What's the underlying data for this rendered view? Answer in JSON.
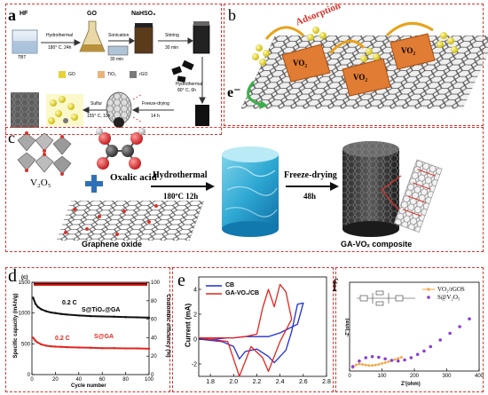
{
  "panel_a": {
    "label": "a",
    "row1": [
      {
        "name": "HF"
      },
      {
        "name": "GO"
      },
      {
        "name": "NaHSO₃"
      }
    ],
    "step_hydro": "Hydrothermal",
    "step_hydro_cond": "180° C, 24h",
    "step_sonic": "Sonication",
    "step_sonic_t": "30 min",
    "step_stir": "Stirring",
    "step_stir_t": "30 min",
    "tbt": "TBT",
    "legend_go": "GO",
    "legend_tio2": "TiO₂",
    "legend_rgo": "rGO",
    "step_hydro2": "Hydrothermal",
    "step_hydro2_cond": "80° C, 6h",
    "step_sulfur": "Sulfur",
    "step_sulfur_cond": "155° C, 10h",
    "step_freeze": "Freeze-drying",
    "step_freeze_t": "14 h"
  },
  "panel_b": {
    "label": "b",
    "adsorption": "Adsorption",
    "vo2": "VO₂",
    "electron": "e⁻"
  },
  "panel_c": {
    "label": "c",
    "v2o5": "V₂O₅",
    "oxalic": "Oxalic acid",
    "graphene_oxide": "Graphene oxide",
    "hydrothermal": "Hydrothermal",
    "hydro_cond": "180ºC 12h",
    "freeze": "Freeze-drying",
    "freeze_t": "48h",
    "composite": "GA-VOₓ composite"
  },
  "panel_d": {
    "label": "d",
    "sublabel": "(c)",
    "ylabel_left": "Specific capacity (mAh/g)",
    "ylabel_right": "Coulombic efficiency (%)",
    "xlabel": "Cycle number",
    "series1": "S@TiO₂@GA",
    "series2": "S@GA",
    "rate1": "0.2 C",
    "rate2": "0.2 C",
    "yticks_left": [
      "0",
      "500",
      "1000",
      "1500"
    ],
    "yticks_right": [
      "0",
      "20",
      "40",
      "60",
      "80",
      "100"
    ],
    "xticks": [
      "0",
      "20",
      "40",
      "60",
      "80",
      "100"
    ],
    "colors": {
      "series1": "#111111",
      "series2": "#e3251f"
    }
  },
  "panel_e": {
    "label": "e",
    "ylabel": "Current (mA)",
    "legend_cb": "CB",
    "legend_ga": "GA-VO₂/CB",
    "xticks": [
      "1.8",
      "2.0",
      "2.2",
      "2.4",
      "2.6",
      "2.8"
    ],
    "yticks": [
      "-2",
      "0",
      "2",
      "4"
    ],
    "colors": {
      "cb": "#1f2fd6",
      "ga": "#e3251f"
    }
  },
  "panel_f": {
    "label": "f",
    "legend1": "VO₂/rGOS",
    "legend2": "S@V₂O₅",
    "xlabel": "Z'(ohm)",
    "ylabel": "-Z''(ohm)",
    "xticks": [
      "0",
      "100",
      "200",
      "300",
      "400"
    ],
    "colors": {
      "s1": "#f4a340",
      "s2": "#8a3fd1"
    }
  },
  "chart_data": [
    {
      "type": "scatter",
      "ylabel": "Specific capacity (mAh/g)",
      "xlabel": "Cycle number",
      "ylim": [
        0,
        1500
      ],
      "xlim": [
        0,
        100
      ],
      "series": [
        {
          "name": "S@TiO₂@GA",
          "x": [
            1,
            3,
            5,
            8,
            12,
            16,
            20,
            25,
            30,
            40,
            50,
            60,
            70,
            80,
            90,
            100
          ],
          "y": [
            1250,
            1150,
            1100,
            1060,
            1030,
            1010,
            1000,
            985,
            975,
            960,
            950,
            945,
            940,
            935,
            930,
            925
          ]
        },
        {
          "name": "S@GA",
          "x": [
            1,
            3,
            5,
            8,
            12,
            16,
            20,
            25,
            30,
            40,
            50,
            60,
            70,
            80,
            90,
            100
          ],
          "y": [
            600,
            550,
            520,
            490,
            470,
            460,
            455,
            450,
            445,
            440,
            435,
            430,
            430,
            425,
            425,
            420
          ]
        }
      ]
    },
    {
      "type": "line",
      "ylabel": "Current (mA)",
      "xlim": [
        1.7,
        2.8
      ],
      "ylim": [
        -3,
        5
      ],
      "series": [
        {
          "name": "CB",
          "x": [
            1.7,
            1.9,
            2.0,
            2.05,
            2.1,
            2.2,
            2.3,
            2.35,
            2.45,
            2.5,
            2.55,
            2.6,
            2.55,
            2.4,
            2.3,
            2.2,
            2.1,
            2.0,
            1.95,
            1.85,
            1.7
          ],
          "y": [
            0,
            -0.2,
            -0.6,
            -1.6,
            -1.0,
            -0.8,
            -1.4,
            -1.9,
            -0.9,
            0.6,
            2.8,
            2.9,
            1.2,
            0.5,
            0.2,
            0.2,
            0.2,
            0.1,
            0.1,
            0.0,
            0
          ]
        },
        {
          "name": "GA-VO₂/CB",
          "x": [
            1.7,
            1.95,
            2.05,
            2.15,
            2.25,
            2.3,
            2.4,
            2.5,
            2.45,
            2.4,
            2.35,
            2.3,
            2.25,
            2.2,
            2.15,
            2.1,
            2.0,
            1.9,
            1.7
          ],
          "y": [
            0.1,
            -0.2,
            -3.0,
            -0.6,
            -1.5,
            -2.6,
            -0.2,
            1.6,
            3.8,
            4.4,
            2.6,
            4.0,
            2.5,
            0.4,
            0.3,
            0.2,
            0.1,
            0.1,
            0.1
          ]
        }
      ]
    },
    {
      "type": "scatter",
      "xlabel": "Z'(ohm)",
      "ylabel": "-Z''(ohm)",
      "xlim": [
        0,
        400
      ],
      "series": [
        {
          "name": "VO₂/rGOS",
          "x": [
            10,
            20,
            30,
            40,
            50,
            60,
            70,
            80,
            90,
            100,
            110,
            120,
            130,
            140,
            150,
            160
          ],
          "y": [
            15,
            28,
            32,
            30,
            27,
            25,
            25,
            27,
            30,
            34,
            38,
            42,
            47,
            52,
            57,
            62
          ]
        },
        {
          "name": "S@V₂O₅",
          "x": [
            10,
            30,
            50,
            70,
            90,
            110,
            130,
            150,
            170,
            190,
            210,
            230,
            250,
            280,
            310,
            340,
            370
          ],
          "y": [
            20,
            45,
            60,
            65,
            62,
            55,
            48,
            45,
            50,
            60,
            75,
            90,
            110,
            140,
            170,
            200,
            235
          ]
        }
      ]
    }
  ]
}
